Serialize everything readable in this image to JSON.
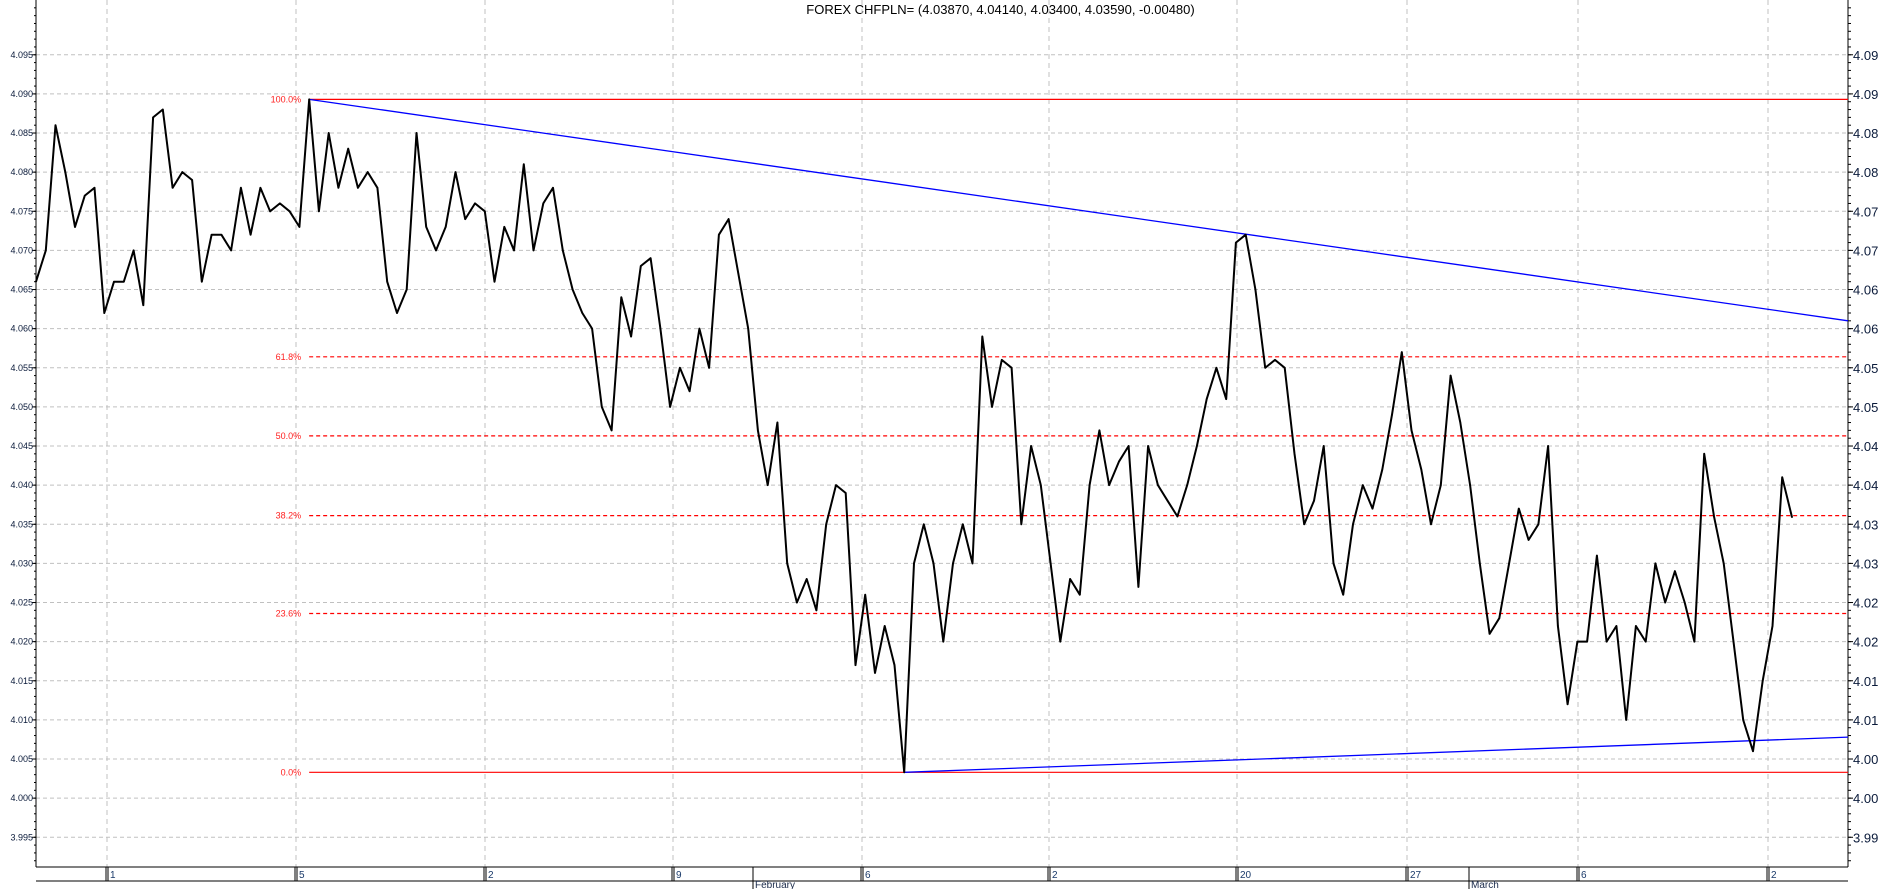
{
  "chart_data": {
    "type": "line",
    "title": "FOREX CHFPLN= (4.03870, 4.04140, 4.03400, 4.03590, -0.00480)",
    "ylim": [
      3.9912,
      4.102
    ],
    "grid": true,
    "left_ticks": [
      "4.095",
      "4.090",
      "4.085",
      "4.080",
      "4.075",
      "4.070",
      "4.065",
      "4.060",
      "4.055",
      "4.050",
      "4.045",
      "4.040",
      "4.035",
      "4.030",
      "4.025",
      "4.020",
      "4.015",
      "4.010",
      "4.005",
      "4.000",
      "3.995"
    ],
    "right_ticks": [
      "4.09",
      "4.09",
      "4.08",
      "4.08",
      "4.07",
      "4.07",
      "4.06",
      "4.06",
      "4.05",
      "4.05",
      "4.04",
      "4.04",
      "4.03",
      "4.03",
      "4.02",
      "4.02",
      "4.01",
      "4.01",
      "4.00",
      "4.00",
      "3.99"
    ],
    "tick_values": [
      4.095,
      4.09,
      4.085,
      4.08,
      4.075,
      4.07,
      4.065,
      4.06,
      4.055,
      4.05,
      4.045,
      4.04,
      4.035,
      4.03,
      4.025,
      4.02,
      4.015,
      4.01,
      4.005,
      4.0,
      3.995
    ],
    "x_tick_labels": [
      "1",
      "5",
      "2",
      "9",
      "6",
      "2",
      "20",
      "27",
      "6",
      "2"
    ],
    "month_labels": [
      "February",
      "March"
    ],
    "series": [
      {
        "color": "#000000",
        "values": [
          4.066,
          4.07,
          4.086,
          4.08,
          4.073,
          4.077,
          4.078,
          4.062,
          4.066,
          4.066,
          4.07,
          4.063,
          4.087,
          4.088,
          4.078,
          4.08,
          4.079,
          4.066,
          4.072,
          4.072,
          4.07,
          4.078,
          4.072,
          4.078,
          4.075,
          4.076,
          4.075,
          4.073,
          4.0893,
          4.075,
          4.085,
          4.078,
          4.083,
          4.078,
          4.08,
          4.078,
          4.066,
          4.062,
          4.065,
          4.085,
          4.073,
          4.07,
          4.073,
          4.08,
          4.074,
          4.076,
          4.075,
          4.066,
          4.073,
          4.07,
          4.081,
          4.07,
          4.076,
          4.078,
          4.07,
          4.065,
          4.062,
          4.06,
          4.05,
          4.047,
          4.064,
          4.059,
          4.068,
          4.069,
          4.06,
          4.05,
          4.055,
          4.052,
          4.06,
          4.055,
          4.072,
          4.074,
          4.067,
          4.06,
          4.047,
          4.04,
          4.048,
          4.03,
          4.025,
          4.028,
          4.024,
          4.035,
          4.04,
          4.039,
          4.017,
          4.026,
          4.016,
          4.022,
          4.017,
          4.0033,
          4.03,
          4.035,
          4.03,
          4.02,
          4.03,
          4.035,
          4.03,
          4.059,
          4.05,
          4.056,
          4.055,
          4.035,
          4.045,
          4.04,
          4.03,
          4.02,
          4.028,
          4.026,
          4.04,
          4.047,
          4.04,
          4.043,
          4.045,
          4.027,
          4.045,
          4.04,
          4.038,
          4.036,
          4.04,
          4.045,
          4.051,
          4.055,
          4.051,
          4.071,
          4.072,
          4.065,
          4.055,
          4.056,
          4.055,
          4.044,
          4.035,
          4.038,
          4.045,
          4.03,
          4.026,
          4.035,
          4.04,
          4.037,
          4.042,
          4.049,
          4.057,
          4.047,
          4.042,
          4.035,
          4.04,
          4.054,
          4.048,
          4.04,
          4.03,
          4.021,
          4.023,
          4.03,
          4.037,
          4.033,
          4.035,
          4.045,
          4.022,
          4.012,
          4.02,
          4.02,
          4.031,
          4.02,
          4.022,
          4.01,
          4.022,
          4.02,
          4.03,
          4.025,
          4.029,
          4.025,
          4.02,
          4.044,
          4.036,
          4.03,
          4.02,
          4.01,
          4.006,
          4.015,
          4.022,
          4.041,
          4.0359
        ]
      }
    ],
    "fibonacci": {
      "color": "#ff0000",
      "high": 4.0893,
      "low": 4.0033,
      "levels": [
        {
          "label": "100.0%",
          "value": 4.0893,
          "style": "solid"
        },
        {
          "label": "61.8%",
          "value": 4.0564,
          "style": "dashed"
        },
        {
          "label": "50.0%",
          "value": 4.0463,
          "style": "dashed"
        },
        {
          "label": "38.2%",
          "value": 4.0361,
          "style": "dashed"
        },
        {
          "label": "23.6%",
          "value": 4.0236,
          "style": "dashed"
        },
        {
          "label": "0.0%",
          "value": 4.0033,
          "style": "solid"
        }
      ]
    },
    "trendlines": [
      {
        "color": "#0000ff",
        "anchor": "max",
        "start": 4.0893,
        "end": 4.061
      },
      {
        "color": "#0000ff",
        "anchor": "min",
        "start": 4.0033,
        "end": 4.0078
      }
    ]
  }
}
